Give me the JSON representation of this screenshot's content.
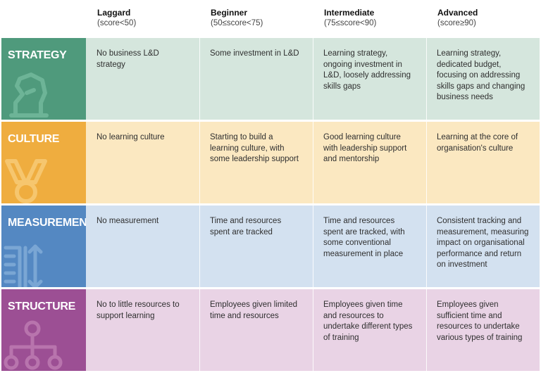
{
  "levels": [
    {
      "name": "Laggard",
      "range": "(score<50)"
    },
    {
      "name": "Beginner",
      "range": "(50≤score<75)"
    },
    {
      "name": "Intermediate",
      "range": "(75≤score<90)"
    },
    {
      "name": "Advanced",
      "range": "(score≥90)"
    }
  ],
  "rows": [
    {
      "category": "STRATEGY",
      "icon": "chess-knight-icon",
      "color": "#4f9a7c",
      "cell_color": "#d5e6dd",
      "cells": [
        "No business L&D strategy",
        "Some investment in L&D",
        "Learning strategy, ongoing investment in L&D, loosely addressing skills gaps",
        "Learning strategy, dedicated budget, focusing on addressing skills gaps and changing business needs"
      ]
    },
    {
      "category": "CULTURE",
      "icon": "medal-icon",
      "color": "#efad3f",
      "cell_color": "#fbe8c1",
      "cells": [
        "No learning culture",
        "Starting to build a learning culture, with some leadership support",
        "Good learning culture with leadership support and mentorship",
        "Learning at the core of organisation's culture"
      ]
    },
    {
      "category": "MEASUREMENT",
      "icon": "ruler-measure-icon",
      "color": "#5488c2",
      "cell_color": "#d3e1f0",
      "cells": [
        "No measurement",
        "Time and resources spent are tracked",
        "Time and resources spent are tracked, with some conventional measurement in place",
        "Consistent tracking and measurement, measuring impact on organisational performance and return on investment"
      ]
    },
    {
      "category": "STRUCTURE",
      "icon": "org-chart-icon",
      "color": "#9c4f94",
      "cell_color": "#e9d3e5",
      "cells": [
        "No to little resources to support learning",
        "Employees given limited time and resources",
        "Employees given time and resources to undertake different types of training",
        "Employees given sufficient time and resources to undertake various types of training"
      ]
    }
  ]
}
